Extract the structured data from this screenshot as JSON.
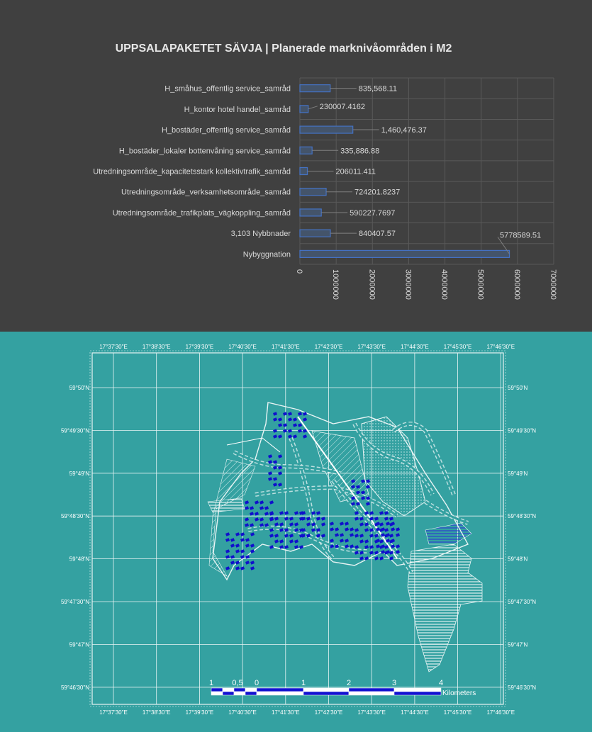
{
  "chart_data": {
    "type": "bar",
    "orientation": "horizontal",
    "title": "UPPSALAPAKETET SÄVJA | Planerade marknivåområden i M2",
    "categories": [
      "H_småhus_offentlig service_samråd",
      "H_kontor hotel handel_samråd",
      "H_bostäder_offentlig service_samråd",
      "H_bostäder_lokaler bottenvåning service_samråd",
      "Utredningsområde_kapacitetsstark kollektivtrafik_samråd",
      "Utredningsområde_verksamhetsområde_samråd",
      "Utredningsområde_trafikplats_vägkoppling_samråd",
      "3,103 Nybbnader",
      "Nybyggnation"
    ],
    "values": [
      835568.11,
      230007.4162,
      1460476.37,
      335886.88,
      206011.411,
      724201.8237,
      590227.7697,
      840407.57,
      5778589.51
    ],
    "data_labels": [
      "835,568.11",
      "230007.4162",
      "1,460,476.37",
      "335,886.88",
      "206011.411",
      "724201.8237",
      "590227.7697",
      "840407.57",
      "5778589.51"
    ],
    "xlim": [
      0,
      7000000
    ],
    "x_ticks": [
      "0",
      "1000000",
      "2000000",
      "3000000",
      "4000000",
      "5000000",
      "6000000",
      "7000000"
    ],
    "x_tick_values": [
      0,
      1000000,
      2000000,
      3000000,
      4000000,
      5000000,
      6000000,
      7000000
    ],
    "grid": true,
    "colors": {
      "bar_fill": "#44546a",
      "bar_edge": "#4472c4",
      "text": "#d9d9d9",
      "background": "#404040"
    }
  },
  "map": {
    "top_labels": [
      "17°37'30\"E",
      "17°38'30\"E",
      "17°39'30\"E",
      "17°40'30\"E",
      "17°41'30\"E",
      "17°42'30\"E",
      "17°43'30\"E",
      "17°44'30\"E",
      "17°45'30\"E",
      "17°46'30\"E"
    ],
    "bottom_labels": [
      "17°37'30\"E",
      "17°38'30\"E",
      "17°39'30\"E",
      "17°40'30\"E",
      "17°41'30\"E",
      "17°42'30\"E",
      "17°43'30\"E",
      "17°44'30\"E",
      "17°45'30\"E",
      "17°46'30\"E"
    ],
    "left_labels": [
      "59°50'N",
      "59°49'30\"N",
      "59°49'N",
      "59°48'30\"N",
      "59°48'N",
      "59°47'30\"N",
      "59°47'N",
      "59°46'30\"N"
    ],
    "right_labels": [
      "59°50'N",
      "59°49'30\"N",
      "59°49'N",
      "59°48'30\"N",
      "59°48'N",
      "59°47'30\"N",
      "59°47'N",
      "59°46'30\"N"
    ],
    "scalebar": {
      "labels": [
        "1",
        "0,5",
        "0",
        "1",
        "2",
        "3",
        "4"
      ],
      "unit": "Kilometers"
    },
    "colors": {
      "background": "#34a1a1",
      "lines": "#e8f4f4",
      "buildings": "#1010cc"
    }
  }
}
